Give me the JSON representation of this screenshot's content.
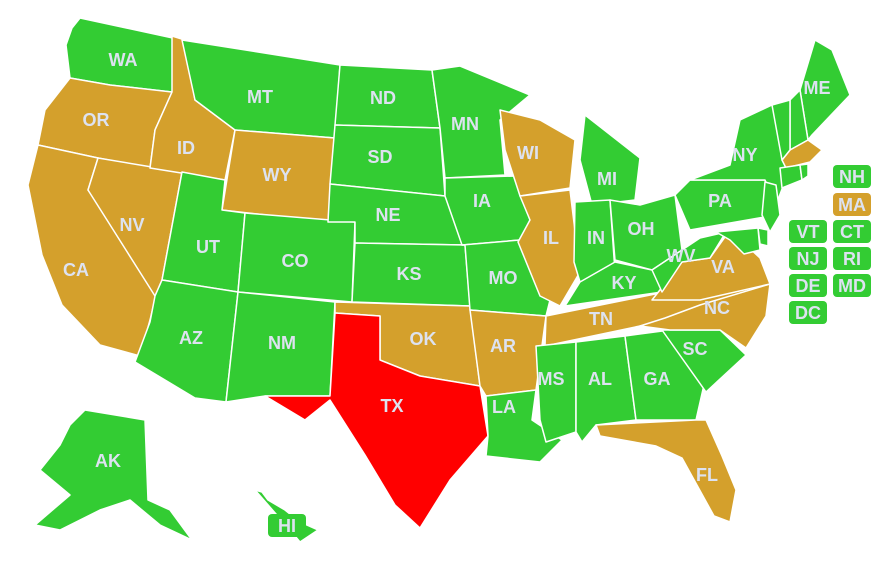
{
  "colors": {
    "allowed": "#33cc33",
    "restricted": "#d4a02c",
    "banned": "#ff0000",
    "label": "#dde2f0"
  },
  "states": [
    {
      "code": "WA",
      "status": "allowed"
    },
    {
      "code": "OR",
      "status": "restricted"
    },
    {
      "code": "CA",
      "status": "restricted"
    },
    {
      "code": "NV",
      "status": "restricted"
    },
    {
      "code": "ID",
      "status": "restricted"
    },
    {
      "code": "MT",
      "status": "allowed"
    },
    {
      "code": "WY",
      "status": "restricted"
    },
    {
      "code": "UT",
      "status": "allowed"
    },
    {
      "code": "AZ",
      "status": "allowed"
    },
    {
      "code": "CO",
      "status": "allowed"
    },
    {
      "code": "NM",
      "status": "allowed"
    },
    {
      "code": "ND",
      "status": "allowed"
    },
    {
      "code": "SD",
      "status": "allowed"
    },
    {
      "code": "NE",
      "status": "allowed"
    },
    {
      "code": "KS",
      "status": "allowed"
    },
    {
      "code": "OK",
      "status": "restricted"
    },
    {
      "code": "TX",
      "status": "banned"
    },
    {
      "code": "MN",
      "status": "allowed"
    },
    {
      "code": "IA",
      "status": "allowed"
    },
    {
      "code": "MO",
      "status": "allowed"
    },
    {
      "code": "AR",
      "status": "restricted"
    },
    {
      "code": "LA",
      "status": "allowed"
    },
    {
      "code": "WI",
      "status": "restricted"
    },
    {
      "code": "IL",
      "status": "restricted"
    },
    {
      "code": "MI",
      "status": "allowed"
    },
    {
      "code": "IN",
      "status": "allowed"
    },
    {
      "code": "OH",
      "status": "allowed"
    },
    {
      "code": "KY",
      "status": "allowed"
    },
    {
      "code": "TN",
      "status": "restricted"
    },
    {
      "code": "MS",
      "status": "allowed"
    },
    {
      "code": "AL",
      "status": "allowed"
    },
    {
      "code": "GA",
      "status": "allowed"
    },
    {
      "code": "SC",
      "status": "allowed"
    },
    {
      "code": "NC",
      "status": "restricted"
    },
    {
      "code": "FL",
      "status": "restricted"
    },
    {
      "code": "VA",
      "status": "restricted"
    },
    {
      "code": "WV",
      "status": "allowed"
    },
    {
      "code": "PA",
      "status": "allowed"
    },
    {
      "code": "NY",
      "status": "allowed"
    },
    {
      "code": "ME",
      "status": "allowed"
    },
    {
      "code": "AK",
      "status": "allowed"
    },
    {
      "code": "HI",
      "status": "allowed"
    }
  ],
  "small_states": [
    {
      "code": "NH",
      "status": "allowed"
    },
    {
      "code": "MA",
      "status": "restricted"
    },
    {
      "code": "VT",
      "status": "allowed"
    },
    {
      "code": "CT",
      "status": "allowed"
    },
    {
      "code": "NJ",
      "status": "allowed"
    },
    {
      "code": "RI",
      "status": "allowed"
    },
    {
      "code": "DE",
      "status": "allowed"
    },
    {
      "code": "MD",
      "status": "allowed"
    },
    {
      "code": "DC",
      "status": "allowed"
    }
  ]
}
